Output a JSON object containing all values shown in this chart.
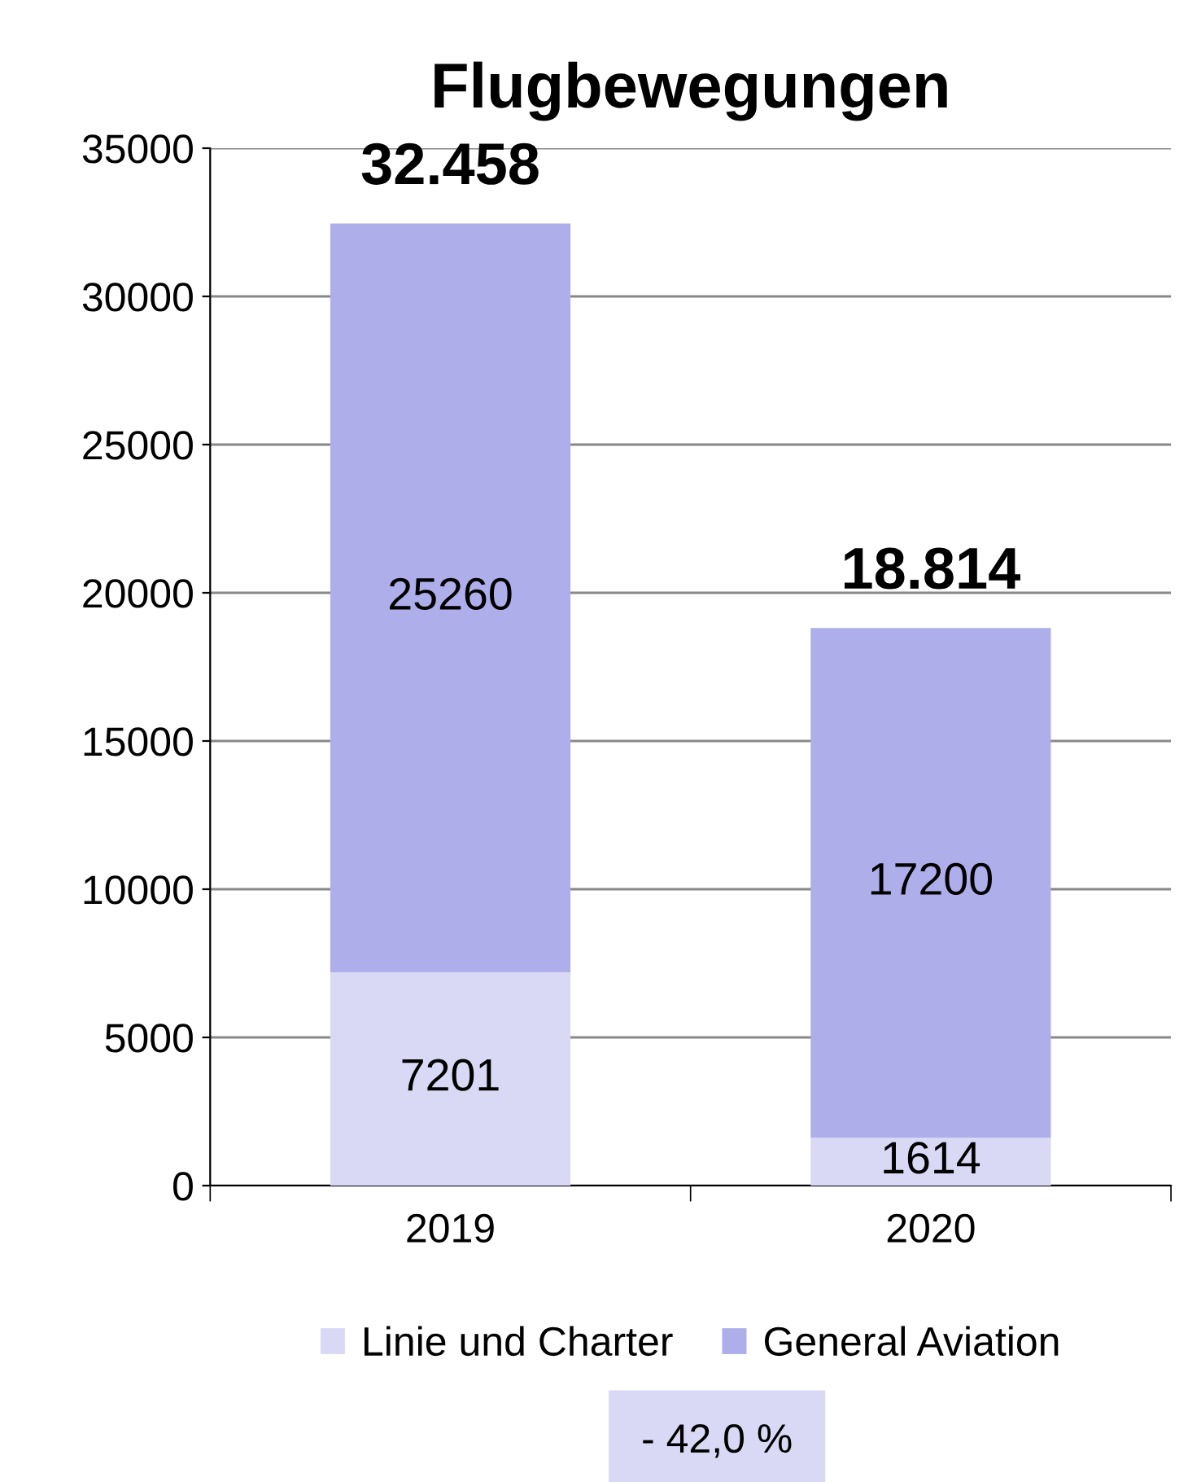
{
  "chart_data": {
    "type": "bar",
    "title": "Flugbewegungen",
    "categories": [
      "2019",
      "2020"
    ],
    "stacked": true,
    "series": [
      {
        "name": "Linie und Charter",
        "color": "#d9d9f5",
        "values": [
          7201,
          1614
        ]
      },
      {
        "name": "General Aviation",
        "color": "#adaeea",
        "values": [
          25260,
          17200
        ]
      }
    ],
    "data_labels": true,
    "ylim": [
      0,
      35000
    ],
    "yticks": [
      0,
      5000,
      10000,
      15000,
      20000,
      25000,
      30000,
      35000
    ],
    "grid": "y",
    "legend": "bottom",
    "annotations": [
      {
        "text": "32.458",
        "x": "2019",
        "y": 32461
      },
      {
        "text": "18.814",
        "x": "2020",
        "y": 18814
      },
      "- 42,0 %"
    ]
  }
}
